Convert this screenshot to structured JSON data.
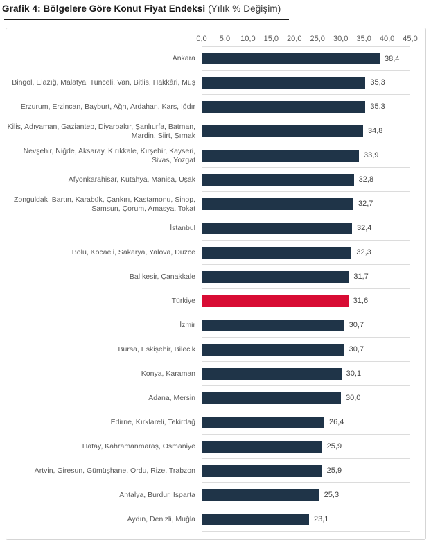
{
  "page": {
    "title_bold": "Grafik 4: Bölgelere Göre Konut Fiyat Endeksi",
    "title_suffix": " (Yılık % Değişim)"
  },
  "colors": {
    "bar": "#1f3448",
    "highlight_bar": "#d80c34",
    "category_text": "#595959",
    "value_text": "#454545",
    "separator": "#dcdcdc",
    "container_border": "#d5d5d5",
    "title_text": "#1a1a1a"
  },
  "chart_data": {
    "type": "bar",
    "orientation": "horizontal",
    "title": "Grafik 4: Bölgelere Göre Konut Fiyat Endeksi (Yılık % Değişim)",
    "xlabel": "",
    "ylabel": "",
    "xlim": [
      0,
      45
    ],
    "grid": "row-separators",
    "legend": "none",
    "x_ticks": [
      "0,0",
      "5,0",
      "10,0",
      "15,0",
      "20,0",
      "25,0",
      "30,0",
      "35,0",
      "40,0",
      "45,0"
    ],
    "x_tick_values": [
      0,
      5,
      10,
      15,
      20,
      25,
      30,
      35,
      40,
      45
    ],
    "categories": [
      "Ankara",
      "Bingöl, Elazığ, Malatya, Tunceli, Van, Bitlis, Hakkâri, Muş",
      "Erzurum, Erzincan, Bayburt, Ağrı, Ardahan, Kars, Iğdır",
      "Kilis, Adıyaman, Gaziantep, Diyarbakır, Şanlıurfa, Batman, Mardin, Siirt, Şırnak",
      "Nevşehir, Niğde, Aksaray, Kırıkkale, Kırşehir, Kayseri, Sivas, Yozgat",
      "Afyonkarahisar, Kütahya, Manisa, Uşak",
      "Zonguldak, Bartın, Karabük, Çankırı, Kastamonu, Sinop, Samsun, Çorum, Amasya, Tokat",
      "İstanbul",
      "Bolu, Kocaeli, Sakarya, Yalova, Düzce",
      "Balıkesir, Çanakkale",
      "Türkiye",
      "İzmir",
      "Bursa, Eskişehir, Bilecik",
      "Konya, Karaman",
      "Adana, Mersin",
      "Edirne, Kırklareli, Tekirdağ",
      "Hatay, Kahramanmaraş, Osmaniye",
      "Artvin, Giresun, Gümüşhane, Ordu, Rize, Trabzon",
      "Antalya, Burdur, Isparta",
      "Aydın, Denizli, Muğla"
    ],
    "values": [
      38.4,
      35.3,
      35.3,
      34.8,
      33.9,
      32.8,
      32.7,
      32.4,
      32.3,
      31.7,
      31.6,
      30.7,
      30.7,
      30.1,
      30.0,
      26.4,
      25.9,
      25.9,
      25.3,
      23.1
    ],
    "value_labels": [
      "38,4",
      "35,3",
      "35,3",
      "34,8",
      "33,9",
      "32,8",
      "32,7",
      "32,4",
      "32,3",
      "31,7",
      "31,6",
      "30,7",
      "30,7",
      "30,1",
      "30,0",
      "26,4",
      "25,9",
      "25,9",
      "25,3",
      "23,1"
    ],
    "highlight_index": 10,
    "highlight_category": "Türkiye"
  }
}
